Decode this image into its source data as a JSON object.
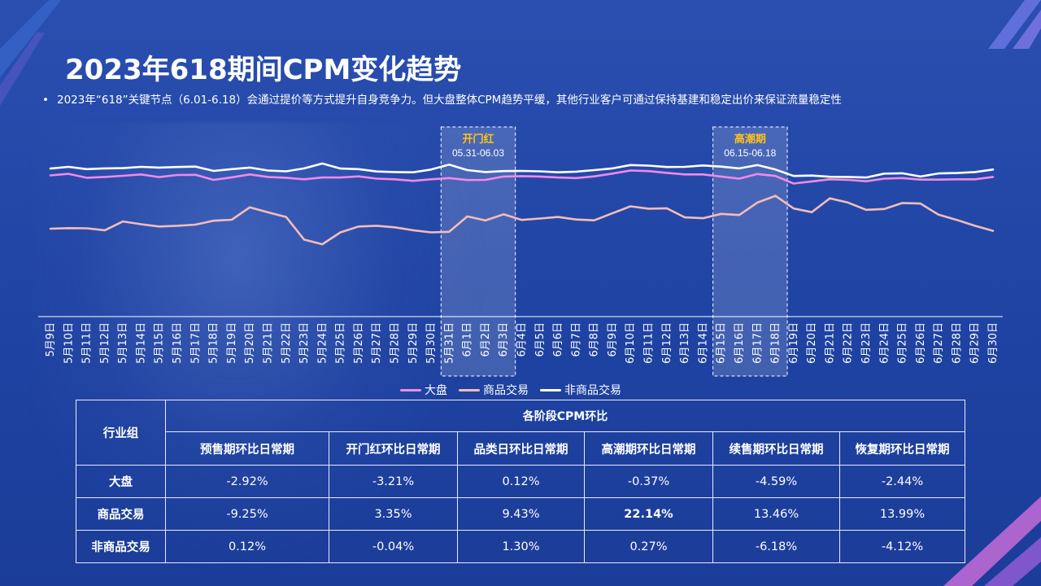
{
  "title": "2023年618期间CPM变化趋势",
  "subtitle": "2023年“618”关键节点（6.01-6.18）会通过提价等方式提升自身竞争力。但大盘整体CPM趋势平缓，其他行业客户可通过保持基建和稳定出价来保证流量稳定性",
  "bullet": "•",
  "colors": {
    "dapan": "#f08ae6",
    "shangpin": "#f4bcb8",
    "feishangpin": "#ffffff",
    "highlight": "#ffc21a",
    "table_header": "#ff82cf"
  },
  "chart_data": {
    "type": "line",
    "title": "",
    "xlabel": "",
    "ylabel": "",
    "x": [
      "5月9日",
      "5月10日",
      "5月11日",
      "5月12日",
      "5月13日",
      "5月14日",
      "5月15日",
      "5月16日",
      "5月17日",
      "5月18日",
      "5月19日",
      "5月20日",
      "5月21日",
      "5月22日",
      "5月23日",
      "5月24日",
      "5月25日",
      "5月26日",
      "5月27日",
      "5月28日",
      "5月29日",
      "5月30日",
      "5月31日",
      "6月1日",
      "6月2日",
      "6月3日",
      "6月4日",
      "6月5日",
      "6月6日",
      "6月7日",
      "6月8日",
      "6月9日",
      "6月10日",
      "6月11日",
      "6月12日",
      "6月13日",
      "6月14日",
      "6月15日",
      "6月16日",
      "6月17日",
      "6月18日",
      "6月19日",
      "6月20日",
      "6月21日",
      "6月22日",
      "6月23日",
      "6月24日",
      "6月25日",
      "6月26日",
      "6月27日",
      "6月28日",
      "6月29日",
      "6月30日"
    ],
    "ylim": [
      0,
      100
    ],
    "series": [
      {
        "name": "大盘",
        "color": "#f08ae6",
        "values": [
          72.6,
          73.4,
          71.4,
          71.8,
          72.4,
          73.1,
          71.7,
          72.8,
          72.9,
          70.3,
          71.6,
          73.1,
          71.8,
          71.4,
          70.6,
          71.5,
          71.5,
          72.1,
          70.9,
          70.6,
          69.8,
          70.6,
          71.2,
          70.2,
          70.3,
          72.0,
          72.2,
          72.0,
          71.5,
          71.2,
          72.1,
          73.5,
          75.1,
          74.8,
          73.9,
          73.1,
          73.1,
          72.0,
          70.9,
          73.3,
          72.3,
          68.4,
          69.5,
          70.6,
          70.3,
          69.6,
          70.9,
          71.2,
          70.4,
          70.4,
          70.6,
          70.6,
          71.8
        ]
      },
      {
        "name": "商品交易",
        "color": "#f4bcb8",
        "values": [
          45.2,
          45.5,
          45.4,
          44.4,
          48.9,
          47.5,
          46.3,
          46.7,
          47.3,
          49.3,
          49.8,
          56.2,
          53.6,
          51.2,
          39.6,
          37.2,
          43.3,
          46.3,
          46.7,
          45.9,
          44.4,
          43.3,
          43.6,
          51.5,
          49.4,
          52.6,
          49.7,
          50.4,
          51.2,
          49.9,
          49.5,
          53.1,
          56.7,
          55.5,
          55.7,
          51.0,
          50.6,
          52.8,
          52.2,
          58.6,
          62.1,
          55.6,
          53.7,
          60.8,
          58.6,
          54.9,
          55.3,
          58.4,
          58.1,
          52.4,
          49.7,
          46.7,
          44.1
        ]
      },
      {
        "name": "非商品交易",
        "color": "#ffffff",
        "values": [
          76.1,
          77.0,
          75.8,
          76.2,
          76.3,
          77.0,
          76.6,
          76.9,
          77.1,
          74.9,
          75.8,
          76.6,
          75.1,
          74.7,
          76.2,
          78.7,
          76.1,
          75.8,
          74.6,
          74.3,
          74.2,
          75.6,
          78.1,
          75.3,
          74.3,
          74.8,
          74.9,
          74.7,
          74.2,
          74.5,
          75.3,
          76.2,
          77.9,
          77.6,
          76.9,
          77.0,
          77.7,
          77.1,
          76.2,
          77.9,
          75.6,
          72.3,
          72.5,
          71.9,
          71.8,
          71.5,
          73.5,
          73.7,
          72.0,
          73.6,
          73.8,
          74.3,
          75.6
        ]
      }
    ],
    "highlights": [
      {
        "label": "开门红",
        "range": "05.31-06.03",
        "from": "5月31日",
        "to": "6月3日"
      },
      {
        "label": "高潮期",
        "range": "06.15-06.18",
        "from": "6月15日",
        "to": "6月18日"
      }
    ],
    "legend_position": "bottom",
    "grid": false
  },
  "table": {
    "row_header": "行业组",
    "group_header": "各阶段CPM环比",
    "columns": [
      "预售期环比日常期",
      "开门红环比日常期",
      "品类日环比日常期",
      "高潮期环比日常期",
      "续售期环比日常期",
      "恢复期环比日常期"
    ],
    "rows": [
      {
        "label": "大盘",
        "values": [
          "-2.92%",
          "-3.21%",
          "0.12%",
          "-0.37%",
          "-4.59%",
          "-2.44%"
        ]
      },
      {
        "label": "商品交易",
        "values": [
          "-9.25%",
          "3.35%",
          "9.43%",
          "22.14%",
          "13.46%",
          "13.99%"
        ]
      },
      {
        "label": "非商品交易",
        "values": [
          "0.12%",
          "-0.04%",
          "1.30%",
          "0.27%",
          "-6.18%",
          "-4.12%"
        ]
      }
    ]
  }
}
